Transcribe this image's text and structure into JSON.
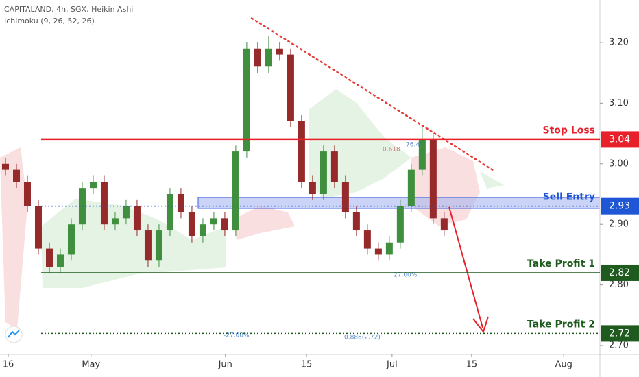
{
  "chart_data": {
    "type": "candlestick",
    "title": "CAPITALAND, 4h, SGX, Heikin Ashi",
    "subtitle": "Ichimoku (9, 26, 52, 26)",
    "up_color": "#3f8f3f",
    "down_color": "#962a2a",
    "x": [
      1,
      3,
      5,
      7,
      9,
      11,
      13,
      15,
      17,
      19,
      21,
      23,
      25,
      27,
      29,
      31,
      33,
      35,
      37,
      39,
      41,
      43,
      45,
      47,
      49,
      51,
      53,
      55,
      57,
      59,
      61,
      63,
      65,
      67,
      69,
      71,
      73,
      75,
      77,
      79,
      81
    ],
    "open": [
      3.0,
      2.99,
      2.97,
      2.93,
      2.86,
      2.83,
      2.85,
      2.9,
      2.96,
      2.97,
      2.9,
      2.91,
      2.93,
      2.89,
      2.84,
      2.89,
      2.95,
      2.92,
      2.88,
      2.9,
      2.91,
      2.89,
      3.02,
      3.19,
      3.16,
      3.19,
      3.18,
      3.07,
      2.97,
      2.95,
      3.02,
      2.97,
      2.92,
      2.89,
      2.86,
      2.85,
      2.87,
      2.93,
      2.99,
      3.04,
      2.91
    ],
    "high": [
      3.01,
      3.0,
      2.98,
      2.94,
      2.87,
      2.86,
      2.91,
      2.97,
      2.98,
      2.98,
      2.92,
      2.94,
      2.94,
      2.9,
      2.9,
      2.96,
      2.96,
      2.93,
      2.91,
      2.92,
      2.92,
      3.03,
      3.2,
      3.2,
      3.21,
      3.2,
      3.19,
      3.08,
      2.98,
      3.03,
      3.03,
      2.98,
      2.93,
      2.9,
      2.87,
      2.88,
      2.94,
      3.0,
      3.06,
      3.05,
      2.92
    ],
    "low": [
      2.98,
      2.96,
      2.92,
      2.85,
      2.82,
      2.82,
      2.84,
      2.89,
      2.95,
      2.89,
      2.89,
      2.9,
      2.88,
      2.83,
      2.83,
      2.88,
      2.91,
      2.87,
      2.87,
      2.89,
      2.88,
      2.88,
      3.01,
      3.15,
      3.15,
      3.17,
      3.06,
      2.96,
      2.94,
      2.94,
      2.96,
      2.91,
      2.88,
      2.85,
      2.84,
      2.84,
      2.86,
      2.92,
      2.98,
      2.9,
      2.88
    ],
    "close": [
      2.99,
      2.97,
      2.93,
      2.86,
      2.83,
      2.85,
      2.9,
      2.96,
      2.97,
      2.9,
      2.91,
      2.93,
      2.89,
      2.84,
      2.89,
      2.95,
      2.92,
      2.88,
      2.9,
      2.91,
      2.89,
      3.02,
      3.19,
      3.16,
      3.19,
      3.18,
      3.07,
      2.97,
      2.95,
      3.02,
      2.97,
      2.92,
      2.89,
      2.86,
      2.85,
      2.87,
      2.93,
      2.99,
      3.04,
      2.91,
      2.89
    ],
    "xlim": [
      0,
      109.4
    ],
    "xticks": [
      {
        "value": 1.5,
        "label": "16"
      },
      {
        "value": 16.6,
        "label": "May"
      },
      {
        "value": 41.1,
        "label": "Jun"
      },
      {
        "value": 55.9,
        "label": "15"
      },
      {
        "value": 71.5,
        "label": "Jul"
      },
      {
        "value": 86,
        "label": "15"
      },
      {
        "value": 102.8,
        "label": "Aug"
      }
    ],
    "ylim": [
      2.682,
      3.27
    ],
    "yticks": [
      {
        "value": 3.2,
        "label": "3.20"
      },
      {
        "value": 3.1,
        "label": "3.10"
      },
      {
        "value": 3.0,
        "label": "3.00"
      },
      {
        "value": 2.9,
        "label": "2.90"
      },
      {
        "value": 2.8,
        "label": "2.80"
      },
      {
        "value": 2.7,
        "label": "2.70"
      }
    ],
    "trendline": {
      "x": [
        45.9,
        89.8
      ],
      "y": [
        3.24,
        2.99
      ],
      "color": "#e53935"
    },
    "levels": [
      {
        "name": "Stop Loss",
        "value": 3.04,
        "color": "#e8202a"
      },
      {
        "name": "Sell Entry",
        "value": 2.93,
        "color": "#1e56d6"
      },
      {
        "name": "Take Profit 1",
        "value": 2.82,
        "color": "#1f5a1f"
      },
      {
        "name": "Take Profit 2",
        "value": 2.72,
        "color": "#1f5a1f"
      }
    ],
    "annotations": [
      "76.4%",
      "0.618",
      "27.00%",
      "-27.00%",
      "0.886(2.72)"
    ]
  }
}
